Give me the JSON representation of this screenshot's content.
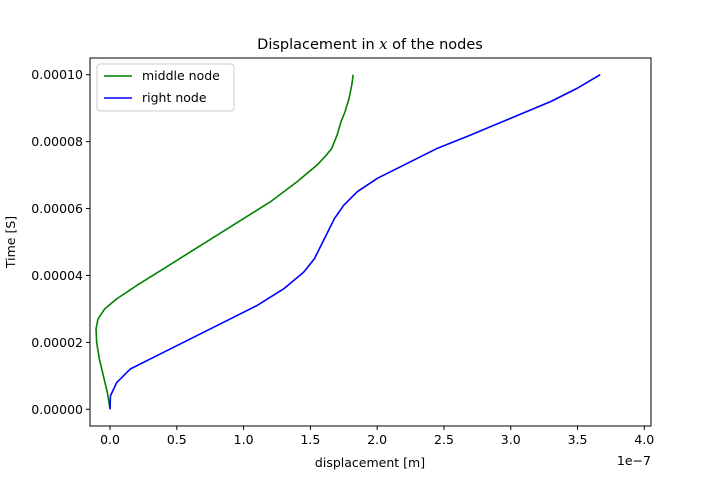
{
  "chart_data": {
    "type": "line",
    "title_prefix": "Displacement in ",
    "title_var": "x",
    "title_suffix": " of the nodes",
    "xlabel": "displacement [m]",
    "ylabel": "Time [S]",
    "x_offset_text": "1e−7",
    "xlim": [
      -0.15,
      4.05
    ],
    "ylim": [
      -5e-06,
      0.000105
    ],
    "x_ticks": [
      0.0,
      0.5,
      1.0,
      1.5,
      2.0,
      2.5,
      3.0,
      3.5,
      4.0
    ],
    "x_tick_labels": [
      "0.0",
      "0.5",
      "1.0",
      "1.5",
      "2.0",
      "2.5",
      "3.0",
      "3.5",
      "4.0"
    ],
    "y_ticks": [
      0.0,
      2e-05,
      4e-05,
      6e-05,
      8e-05,
      0.0001
    ],
    "y_tick_labels": [
      "0.00000",
      "0.00002",
      "0.00004",
      "0.00006",
      "0.00008",
      "0.00010"
    ],
    "grid": false,
    "legend_position": "top-left",
    "series": [
      {
        "name": "middle node",
        "color": "#008000",
        "x": [
          0.0,
          -0.02,
          -0.05,
          -0.08,
          -0.1,
          -0.105,
          -0.09,
          -0.04,
          0.05,
          0.2,
          0.4,
          0.6,
          0.8,
          1.0,
          1.2,
          1.4,
          1.55,
          1.62,
          1.66,
          1.7,
          1.73,
          1.76,
          1.79,
          1.81,
          1.82
        ],
        "y": [
          0.0,
          5e-06,
          1e-05,
          1.5e-05,
          2e-05,
          2.4e-05,
          2.7e-05,
          3e-05,
          3.3e-05,
          3.7e-05,
          4.2e-05,
          4.7e-05,
          5.2e-05,
          5.7e-05,
          6.2e-05,
          6.8e-05,
          7.3e-05,
          7.6e-05,
          7.8e-05,
          8.2e-05,
          8.6e-05,
          8.9e-05,
          9.3e-05,
          9.7e-05,
          0.0001
        ]
      },
      {
        "name": "right node",
        "color": "#0000ff",
        "x": [
          0.0,
          0.003,
          0.05,
          0.15,
          0.3,
          0.5,
          0.7,
          0.9,
          1.1,
          1.3,
          1.45,
          1.53,
          1.58,
          1.63,
          1.68,
          1.75,
          1.85,
          2.0,
          2.2,
          2.45,
          2.7,
          3.0,
          3.3,
          3.5,
          3.67
        ],
        "y": [
          0.0,
          4e-06,
          8e-06,
          1.2e-05,
          1.5e-05,
          1.9e-05,
          2.3e-05,
          2.7e-05,
          3.1e-05,
          3.6e-05,
          4.1e-05,
          4.5e-05,
          4.9e-05,
          5.3e-05,
          5.7e-05,
          6.1e-05,
          6.5e-05,
          6.9e-05,
          7.3e-05,
          7.8e-05,
          8.2e-05,
          8.7e-05,
          9.2e-05,
          9.6e-05,
          0.0001
        ]
      }
    ]
  }
}
